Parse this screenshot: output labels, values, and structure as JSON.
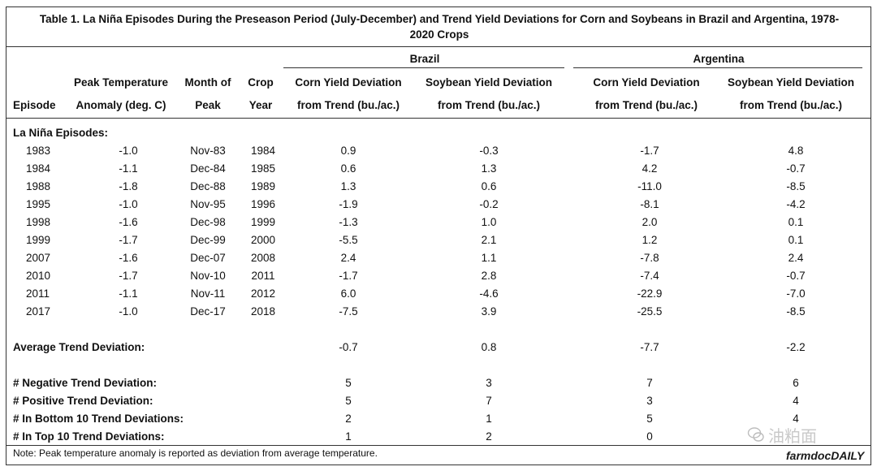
{
  "title_line1": "Table 1. La Niña Episodes During the Preseason Period (July-December) and Trend Yield Deviations for Corn and Soybeans in Brazil and Argentina, 1978-",
  "title_line2": "2020 Crops",
  "group_headers": {
    "brazil": "Brazil",
    "argentina": "Argentina"
  },
  "col_headers": {
    "episode": "Episode",
    "peak_temp_1": "Peak Temperature",
    "peak_temp_2": "Anomaly (deg. C)",
    "month_1": "Month of",
    "month_2": "Peak",
    "crop_1": "Crop",
    "crop_2": "Year",
    "corn_1": "Corn Yield Deviation",
    "corn_2": "from Trend (bu./ac.)",
    "soy_1": "Soybean Yield Deviation",
    "soy_2": "from Trend (bu./ac.)"
  },
  "section_label": "La Niña Episodes:",
  "rows": [
    {
      "episode": "1983",
      "anomaly": "-1.0",
      "month": "Nov-83",
      "year": "1984",
      "br_corn": "0.9",
      "br_soy": "-0.3",
      "ar_corn": "-1.7",
      "ar_soy": "4.8"
    },
    {
      "episode": "1984",
      "anomaly": "-1.1",
      "month": "Dec-84",
      "year": "1985",
      "br_corn": "0.6",
      "br_soy": "1.3",
      "ar_corn": "4.2",
      "ar_soy": "-0.7"
    },
    {
      "episode": "1988",
      "anomaly": "-1.8",
      "month": "Dec-88",
      "year": "1989",
      "br_corn": "1.3",
      "br_soy": "0.6",
      "ar_corn": "-11.0",
      "ar_soy": "-8.5"
    },
    {
      "episode": "1995",
      "anomaly": "-1.0",
      "month": "Nov-95",
      "year": "1996",
      "br_corn": "-1.9",
      "br_soy": "-0.2",
      "ar_corn": "-8.1",
      "ar_soy": "-4.2"
    },
    {
      "episode": "1998",
      "anomaly": "-1.6",
      "month": "Dec-98",
      "year": "1999",
      "br_corn": "-1.3",
      "br_soy": "1.0",
      "ar_corn": "2.0",
      "ar_soy": "0.1"
    },
    {
      "episode": "1999",
      "anomaly": "-1.7",
      "month": "Dec-99",
      "year": "2000",
      "br_corn": "-5.5",
      "br_soy": "2.1",
      "ar_corn": "1.2",
      "ar_soy": "0.1"
    },
    {
      "episode": "2007",
      "anomaly": "-1.6",
      "month": "Dec-07",
      "year": "2008",
      "br_corn": "2.4",
      "br_soy": "1.1",
      "ar_corn": "-7.8",
      "ar_soy": "2.4"
    },
    {
      "episode": "2010",
      "anomaly": "-1.7",
      "month": "Nov-10",
      "year": "2011",
      "br_corn": "-1.7",
      "br_soy": "2.8",
      "ar_corn": "-7.4",
      "ar_soy": "-0.7"
    },
    {
      "episode": "2011",
      "anomaly": "-1.1",
      "month": "Nov-11",
      "year": "2012",
      "br_corn": "6.0",
      "br_soy": "-4.6",
      "ar_corn": "-22.9",
      "ar_soy": "-7.0"
    },
    {
      "episode": "2017",
      "anomaly": "-1.0",
      "month": "Dec-17",
      "year": "2018",
      "br_corn": "-7.5",
      "br_soy": "3.9",
      "ar_corn": "-25.5",
      "ar_soy": "-8.5"
    }
  ],
  "average": {
    "label": "Average Trend Deviation:",
    "br_corn": "-0.7",
    "br_soy": "0.8",
    "ar_corn": "-7.7",
    "ar_soy": "-2.2"
  },
  "counts": [
    {
      "label": "# Negative Trend Deviation:",
      "br_corn": "5",
      "br_soy": "3",
      "ar_corn": "7",
      "ar_soy": "6"
    },
    {
      "label": "# Positive Trend Deviation:",
      "br_corn": "5",
      "br_soy": "7",
      "ar_corn": "3",
      "ar_soy": "4"
    },
    {
      "label": "# In Bottom 10 Trend Deviations:",
      "br_corn": "2",
      "br_soy": "1",
      "ar_corn": "5",
      "ar_soy": "4"
    },
    {
      "label": "# In Top 10 Trend Deviations:",
      "br_corn": "1",
      "br_soy": "2",
      "ar_corn": "0",
      "ar_soy": ""
    }
  ],
  "note": "Note: Peak temperature anomaly is reported as deviation from average temperature.",
  "watermark": "油粕面",
  "logo": "farmdocDAILY"
}
